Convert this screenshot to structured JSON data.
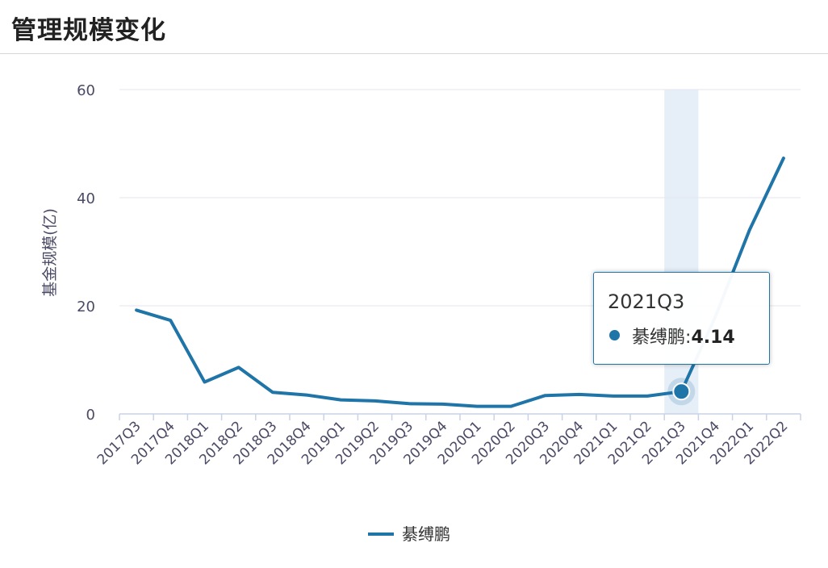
{
  "header": {
    "title": "管理规模变化"
  },
  "colors": {
    "line": "#1f74a8",
    "grid": "#e6e6ee",
    "axis": "#c9d3e6",
    "label": "#4a4a66",
    "highlight": "#e6eef7"
  },
  "chart_data": {
    "type": "line",
    "categories": [
      "2017Q3",
      "2017Q4",
      "2018Q1",
      "2018Q2",
      "2018Q3",
      "2018Q4",
      "2019Q1",
      "2019Q2",
      "2019Q3",
      "2019Q4",
      "2020Q1",
      "2020Q2",
      "2020Q3",
      "2020Q4",
      "2021Q1",
      "2021Q2",
      "2021Q3",
      "2021Q4",
      "2022Q1",
      "2022Q2"
    ],
    "series": [
      {
        "name": "綦缚鹏",
        "values": [
          19.2,
          17.3,
          5.9,
          8.6,
          4.0,
          3.5,
          2.6,
          2.4,
          1.9,
          1.8,
          1.4,
          1.4,
          3.4,
          3.6,
          3.3,
          3.3,
          4.14,
          18.0,
          34.0,
          47.3
        ]
      }
    ],
    "ylabel": "基金规模(亿)",
    "xlabel": "",
    "ylim": [
      0,
      60
    ],
    "yticks": [
      0,
      20,
      40,
      60
    ],
    "grid": true,
    "legend": "bottom-center",
    "highlight_index": 16
  },
  "tooltip": {
    "title": "2021Q3",
    "series": "綦缚鹏",
    "separator": ":",
    "value": "4.14"
  }
}
